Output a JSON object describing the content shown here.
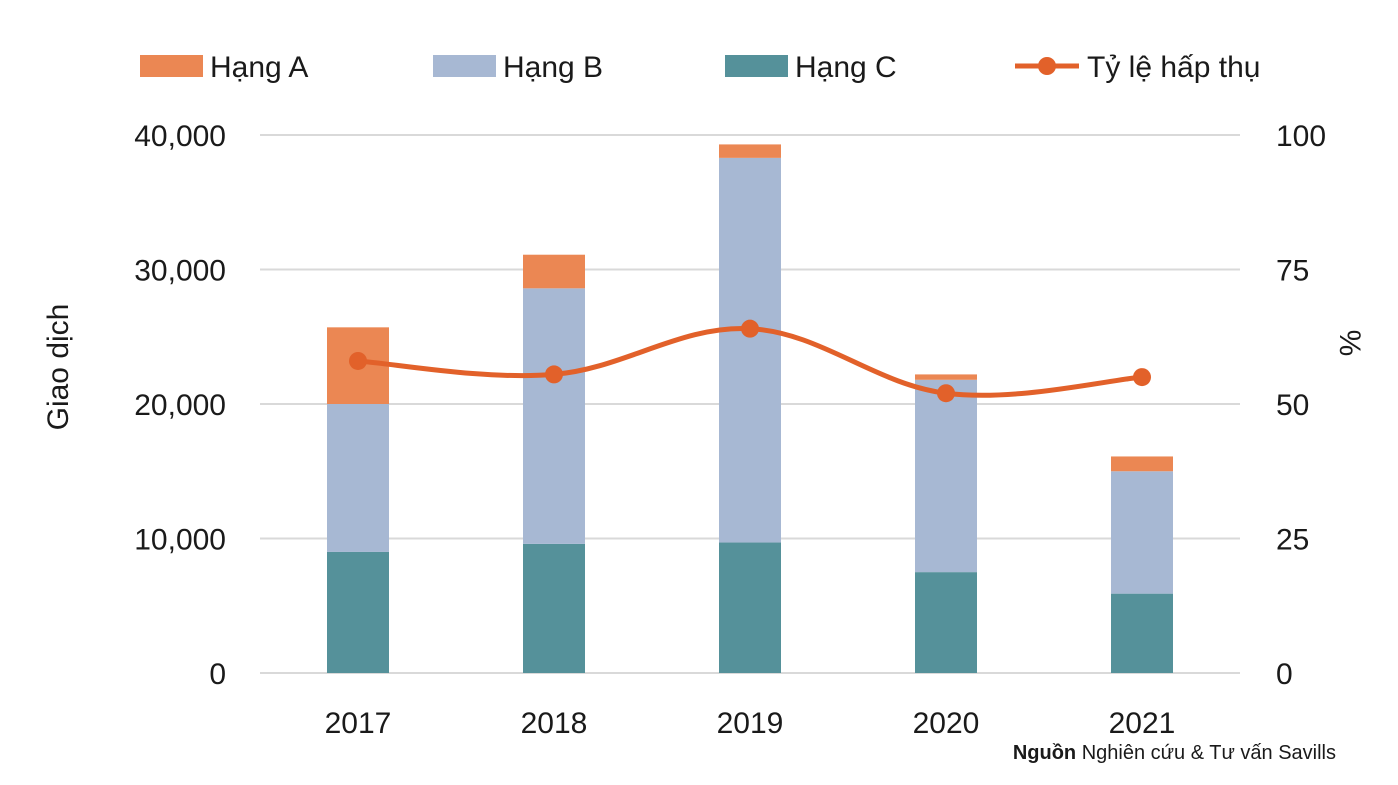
{
  "chart_data": {
    "type": "bar",
    "stacked": true,
    "categories": [
      "2017",
      "2018",
      "2019",
      "2020",
      "2021"
    ],
    "series": [
      {
        "name": "Hạng A",
        "kind": "bar",
        "axis": "left",
        "color": "#EB8753",
        "values": [
          5700,
          2500,
          1000,
          400,
          1100
        ]
      },
      {
        "name": "Hạng B",
        "kind": "bar",
        "axis": "left",
        "color": "#A7B8D3",
        "values": [
          11000,
          19000,
          28600,
          14300,
          9100
        ]
      },
      {
        "name": "Hạng C",
        "kind": "bar",
        "axis": "left",
        "color": "#55919A",
        "values": [
          9000,
          9600,
          9700,
          7500,
          5900
        ]
      },
      {
        "name": "Tỷ lệ hấp thụ",
        "kind": "line",
        "axis": "right",
        "color": "#E2612A",
        "values": [
          58,
          55.5,
          64,
          52,
          55
        ]
      }
    ],
    "stack_order_bottom_to_top": [
      "Hạng C",
      "Hạng B",
      "Hạng A"
    ],
    "legend_order": [
      "Hạng A",
      "Hạng B",
      "Hạng C",
      "Tỷ lệ hấp thụ"
    ],
    "legend_position": "top",
    "ylabel": "Giao dịch",
    "y2label": "%",
    "ylim": [
      0,
      40000
    ],
    "y2lim": [
      0,
      100
    ],
    "yticks": [
      {
        "value": 0,
        "label": "0"
      },
      {
        "value": 10000,
        "label": "10,000"
      },
      {
        "value": 20000,
        "label": "20,000"
      },
      {
        "value": 30000,
        "label": "30,000"
      },
      {
        "value": 40000,
        "label": "40,000"
      }
    ],
    "y2ticks": [
      {
        "value": 0,
        "label": "0"
      },
      {
        "value": 25,
        "label": "25"
      },
      {
        "value": 50,
        "label": "50"
      },
      {
        "value": 75,
        "label": "75"
      },
      {
        "value": 100,
        "label": "100"
      }
    ],
    "grid": true,
    "gridline_color": "#D9D9D9"
  },
  "source": {
    "label": "Nguồn",
    "text": "Nghiên cứu & Tư vấn Savills"
  }
}
